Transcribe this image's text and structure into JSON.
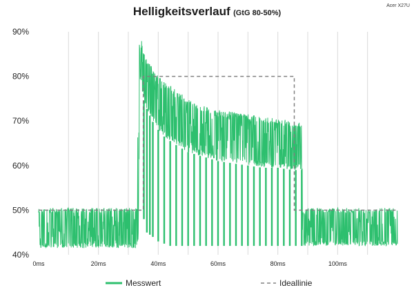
{
  "chart_data": {
    "type": "line",
    "title": "Helligkeitsverlauf",
    "subtitle": "(GtG 80-50%)",
    "brand": "Acer X27U",
    "xlabel": "",
    "ylabel": "",
    "x_unit": "ms",
    "xlim": [
      0,
      120
    ],
    "ylim": [
      40,
      90
    ],
    "x_ticks": [
      0,
      20,
      40,
      60,
      80,
      100
    ],
    "x_tick_labels": [
      "0ms",
      "20ms",
      "40ms",
      "60ms",
      "80ms",
      "100ms"
    ],
    "y_ticks": [
      40,
      50,
      60,
      70,
      80,
      90
    ],
    "y_tick_labels": [
      "40%",
      "50%",
      "60%",
      "70%",
      "80%",
      "90%"
    ],
    "grid": "vertical",
    "legend_position": "bottom",
    "colors": {
      "measured": "#2dbf6e",
      "ideal": "#808080",
      "grid": "#d9d9d9"
    },
    "series": [
      {
        "name": "Messwert",
        "style": "solid",
        "envelope": {
          "x": [
            0,
            33,
            33.3,
            34,
            35,
            36,
            38,
            40,
            42,
            45,
            50,
            55,
            60,
            65,
            70,
            75,
            80,
            85,
            88,
            88.3,
            90,
            120
          ],
          "upper": [
            50.5,
            50.5,
            87,
            90,
            86,
            84,
            82,
            80,
            79,
            77.5,
            75,
            73.5,
            72.5,
            72,
            71.5,
            71,
            70.5,
            70,
            69.5,
            50,
            50.5,
            50.5
          ],
          "lower": [
            41.5,
            41.5,
            42,
            80,
            75,
            73,
            70,
            68,
            66.5,
            65,
            63,
            62,
            61,
            60.5,
            60,
            59.5,
            59.5,
            59,
            59,
            42,
            42,
            42
          ],
          "mean": [
            46,
            46,
            60,
            86,
            80,
            78,
            76,
            74,
            72.5,
            71,
            69,
            67.5,
            66.5,
            66,
            65.5,
            65,
            64.5,
            64.5,
            64.3,
            46,
            46,
            46
          ]
        },
        "dips": {
          "x": [
            35.2,
            36.2,
            37.2,
            38.2,
            40,
            42,
            44,
            46,
            48,
            50,
            52,
            54,
            56,
            58,
            60,
            62,
            64,
            66,
            68,
            70,
            72,
            74,
            76,
            78,
            80,
            82,
            84,
            86,
            88
          ],
          "min": [
            48,
            45,
            44.5,
            44,
            43,
            42.5,
            42,
            42,
            42,
            42,
            42,
            42,
            42,
            42,
            42,
            42,
            42,
            42,
            42,
            42,
            42,
            42,
            42,
            42,
            42,
            42,
            42,
            42,
            42
          ]
        }
      },
      {
        "name": "Ideallinie",
        "style": "dashed",
        "x": [
          0,
          35,
          35,
          85.5,
          85.5,
          120
        ],
        "values": [
          50,
          50,
          80,
          80,
          50,
          50
        ]
      }
    ]
  }
}
